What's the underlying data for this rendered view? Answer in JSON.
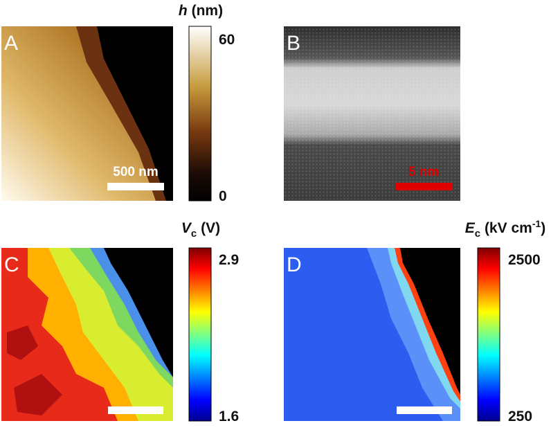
{
  "panels": [
    {
      "label": "A",
      "colorbar": {
        "symbol": "h",
        "unit": "(nm)",
        "max": 60,
        "min": 0
      },
      "scale_bar": "500 nm"
    },
    {
      "label": "B",
      "scale_bar": "5 nm"
    },
    {
      "label": "C",
      "colorbar": {
        "symbol": "V",
        "subscript": "c",
        "unit": "(V)",
        "max": 2.9,
        "min": 1.6
      }
    },
    {
      "label": "D",
      "colorbar": {
        "symbol": "E",
        "subscript": "c",
        "unit": "(kV cm",
        "superscript": "-1",
        "unit_end": ")",
        "max": 2500,
        "min": 250
      }
    }
  ]
}
